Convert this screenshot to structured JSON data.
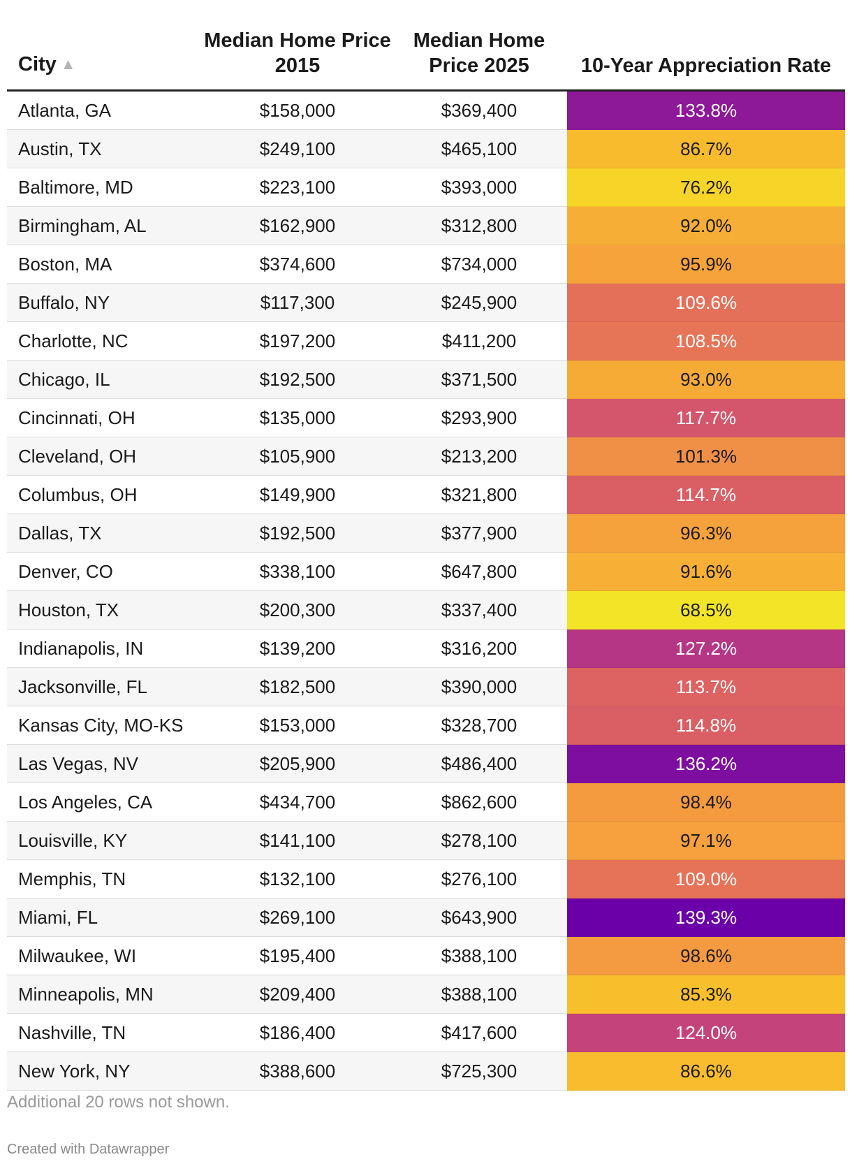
{
  "colors": {
    "scale_low": "#f2e527",
    "scale_mid1": "#f9c628",
    "scale_mid2": "#f6a13d",
    "scale_mid3": "#e36b5c",
    "scale_mid4": "#c23f7e",
    "scale_high": "#6b00a8",
    "text_dark": "#1a1a1a",
    "text_light": "#ffffff"
  },
  "chart_data": {
    "type": "table",
    "columns": [
      {
        "label": "City",
        "sort_indicator": "▲"
      },
      {
        "label": "Median Home Price 2015"
      },
      {
        "label": "Median Home Price 2025"
      },
      {
        "label": "10-Year Appreciation Rate"
      }
    ],
    "rows": [
      {
        "city": "Atlanta, GA",
        "price_2015": "$158,000",
        "price_2025": "$369,400",
        "rate_label": "133.8%",
        "rate": 133.8
      },
      {
        "city": "Austin, TX",
        "price_2015": "$249,100",
        "price_2025": "$465,100",
        "rate_label": "86.7%",
        "rate": 86.7
      },
      {
        "city": "Baltimore, MD",
        "price_2015": "$223,100",
        "price_2025": "$393,000",
        "rate_label": "76.2%",
        "rate": 76.2
      },
      {
        "city": "Birmingham, AL",
        "price_2015": "$162,900",
        "price_2025": "$312,800",
        "rate_label": "92.0%",
        "rate": 92.0
      },
      {
        "city": "Boston, MA",
        "price_2015": "$374,600",
        "price_2025": "$734,000",
        "rate_label": "95.9%",
        "rate": 95.9
      },
      {
        "city": "Buffalo, NY",
        "price_2015": "$117,300",
        "price_2025": "$245,900",
        "rate_label": "109.6%",
        "rate": 109.6
      },
      {
        "city": "Charlotte, NC",
        "price_2015": "$197,200",
        "price_2025": "$411,200",
        "rate_label": "108.5%",
        "rate": 108.5
      },
      {
        "city": "Chicago, IL",
        "price_2015": "$192,500",
        "price_2025": "$371,500",
        "rate_label": "93.0%",
        "rate": 93.0
      },
      {
        "city": "Cincinnati, OH",
        "price_2015": "$135,000",
        "price_2025": "$293,900",
        "rate_label": "117.7%",
        "rate": 117.7
      },
      {
        "city": "Cleveland, OH",
        "price_2015": "$105,900",
        "price_2025": "$213,200",
        "rate_label": "101.3%",
        "rate": 101.3
      },
      {
        "city": "Columbus, OH",
        "price_2015": "$149,900",
        "price_2025": "$321,800",
        "rate_label": "114.7%",
        "rate": 114.7
      },
      {
        "city": "Dallas, TX",
        "price_2015": "$192,500",
        "price_2025": "$377,900",
        "rate_label": "96.3%",
        "rate": 96.3
      },
      {
        "city": "Denver, CO",
        "price_2015": "$338,100",
        "price_2025": "$647,800",
        "rate_label": "91.6%",
        "rate": 91.6
      },
      {
        "city": "Houston, TX",
        "price_2015": "$200,300",
        "price_2025": "$337,400",
        "rate_label": "68.5%",
        "rate": 68.5
      },
      {
        "city": "Indianapolis, IN",
        "price_2015": "$139,200",
        "price_2025": "$316,200",
        "rate_label": "127.2%",
        "rate": 127.2
      },
      {
        "city": "Jacksonville, FL",
        "price_2015": "$182,500",
        "price_2025": "$390,000",
        "rate_label": "113.7%",
        "rate": 113.7
      },
      {
        "city": "Kansas City, MO-KS",
        "price_2015": "$153,000",
        "price_2025": "$328,700",
        "rate_label": "114.8%",
        "rate": 114.8
      },
      {
        "city": "Las Vegas, NV",
        "price_2015": "$205,900",
        "price_2025": "$486,400",
        "rate_label": "136.2%",
        "rate": 136.2
      },
      {
        "city": "Los Angeles, CA",
        "price_2015": "$434,700",
        "price_2025": "$862,600",
        "rate_label": "98.4%",
        "rate": 98.4
      },
      {
        "city": "Louisville, KY",
        "price_2015": "$141,100",
        "price_2025": "$278,100",
        "rate_label": "97.1%",
        "rate": 97.1
      },
      {
        "city": "Memphis, TN",
        "price_2015": "$132,100",
        "price_2025": "$276,100",
        "rate_label": "109.0%",
        "rate": 109.0
      },
      {
        "city": "Miami, FL",
        "price_2015": "$269,100",
        "price_2025": "$643,900",
        "rate_label": "139.3%",
        "rate": 139.3
      },
      {
        "city": "Milwaukee, WI",
        "price_2015": "$195,400",
        "price_2025": "$388,100",
        "rate_label": "98.6%",
        "rate": 98.6
      },
      {
        "city": "Minneapolis, MN",
        "price_2015": "$209,400",
        "price_2025": "$388,100",
        "rate_label": "85.3%",
        "rate": 85.3
      },
      {
        "city": "Nashville, TN",
        "price_2015": "$186,400",
        "price_2025": "$417,600",
        "rate_label": "124.0%",
        "rate": 124.0
      },
      {
        "city": "New York, NY",
        "price_2015": "$388,600",
        "price_2025": "$725,300",
        "rate_label": "86.6%",
        "rate": 86.6
      }
    ],
    "rate_range": [
      68.5,
      139.3
    ],
    "note": "Additional 20 rows not shown.",
    "credit": "Created with Datawrapper"
  }
}
